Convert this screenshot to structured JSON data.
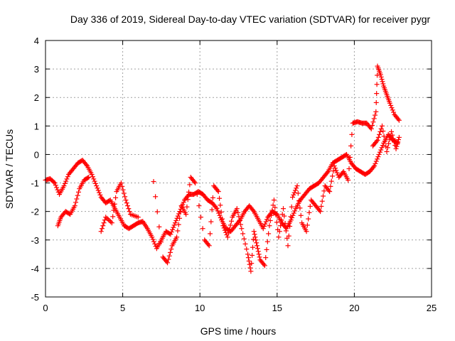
{
  "chart_data": {
    "type": "scatter",
    "title": "Day 336 of 2019, Sidereal Day-to-day VTEC variation (SDTVAR) for receiver pygr",
    "xlabel": "GPS time / hours",
    "ylabel": "SDTVAR / TECUs",
    "xlim": [
      0,
      25
    ],
    "ylim": [
      -5,
      4
    ],
    "xticks": [
      0,
      5,
      10,
      15,
      20,
      25
    ],
    "yticks": [
      -5,
      -4,
      -3,
      -2,
      -1,
      0,
      1,
      2,
      3,
      4
    ],
    "xtick_labels": [
      "0",
      "5",
      "10",
      "15",
      "20",
      "25"
    ],
    "ytick_labels": [
      "-5",
      "-4",
      "-3",
      "-2",
      "-1",
      "0",
      "1",
      "2",
      "3",
      "4"
    ],
    "grid": true,
    "marker": "+",
    "series": [
      {
        "name": "SDTVAR",
        "color": "#ff0000",
        "trace_points": [
          [
            0.0,
            -0.9
          ],
          [
            0.3,
            -0.85
          ],
          [
            0.6,
            -1.0
          ],
          [
            0.9,
            -1.4
          ],
          [
            1.2,
            -1.1
          ],
          [
            1.5,
            -0.7
          ],
          [
            1.8,
            -0.5
          ],
          [
            2.1,
            -0.3
          ],
          [
            2.4,
            -0.2
          ],
          [
            2.7,
            -0.4
          ],
          [
            3.0,
            -0.7
          ],
          [
            3.3,
            -1.1
          ],
          [
            3.6,
            -1.5
          ],
          [
            3.9,
            -1.7
          ],
          [
            4.2,
            -1.6
          ],
          [
            4.5,
            -1.9
          ],
          [
            4.8,
            -2.2
          ],
          [
            5.1,
            -2.5
          ],
          [
            5.4,
            -2.6
          ],
          [
            5.7,
            -2.5
          ],
          [
            6.0,
            -2.4
          ],
          [
            6.3,
            -2.35
          ],
          [
            6.6,
            -2.6
          ],
          [
            6.9,
            -2.9
          ],
          [
            7.2,
            -3.3
          ],
          [
            7.5,
            -3.0
          ],
          [
            7.8,
            -2.7
          ],
          [
            8.1,
            -2.8
          ],
          [
            8.4,
            -2.4
          ],
          [
            8.7,
            -2.0
          ],
          [
            9.0,
            -1.6
          ],
          [
            9.3,
            -1.4
          ],
          [
            9.6,
            -1.4
          ],
          [
            9.9,
            -1.3
          ],
          [
            10.2,
            -1.4
          ],
          [
            10.5,
            -1.6
          ],
          [
            10.8,
            -1.7
          ],
          [
            11.1,
            -1.9
          ],
          [
            11.4,
            -2.3
          ],
          [
            11.7,
            -2.6
          ],
          [
            12.0,
            -2.7
          ],
          [
            12.3,
            -2.5
          ],
          [
            12.6,
            -2.3
          ],
          [
            12.9,
            -2.0
          ],
          [
            13.2,
            -1.8
          ],
          [
            13.5,
            -2.0
          ],
          [
            13.8,
            -2.3
          ],
          [
            14.1,
            -2.6
          ],
          [
            14.4,
            -2.2
          ],
          [
            14.7,
            -2.0
          ],
          [
            15.0,
            -2.1
          ],
          [
            15.3,
            -2.4
          ],
          [
            15.6,
            -2.6
          ],
          [
            15.9,
            -2.3
          ],
          [
            16.2,
            -1.9
          ],
          [
            16.5,
            -1.6
          ],
          [
            16.8,
            -1.4
          ],
          [
            17.1,
            -1.2
          ],
          [
            17.4,
            -1.1
          ],
          [
            17.7,
            -1.0
          ],
          [
            18.0,
            -0.8
          ],
          [
            18.3,
            -0.6
          ],
          [
            18.6,
            -0.3
          ],
          [
            18.9,
            -0.2
          ],
          [
            19.2,
            -0.1
          ],
          [
            19.5,
            0.0
          ],
          [
            19.8,
            -0.3
          ],
          [
            20.1,
            -0.5
          ],
          [
            20.4,
            -0.6
          ],
          [
            20.7,
            -0.7
          ],
          [
            21.0,
            -0.6
          ],
          [
            21.3,
            -0.4
          ],
          [
            21.6,
            0.0
          ],
          [
            21.9,
            0.4
          ],
          [
            22.2,
            0.7
          ],
          [
            22.5,
            0.5
          ],
          [
            22.8,
            0.4
          ],
          [
            0.8,
            -2.5
          ],
          [
            1.0,
            -2.2
          ],
          [
            1.3,
            -2.0
          ],
          [
            1.6,
            -2.1
          ],
          [
            1.9,
            -1.8
          ],
          [
            2.2,
            -1.2
          ],
          [
            2.5,
            -0.9
          ],
          [
            2.8,
            -0.8
          ],
          [
            3.6,
            -2.7
          ],
          [
            3.9,
            -2.2
          ],
          [
            4.3,
            -2.4
          ],
          [
            4.6,
            -1.3
          ],
          [
            4.9,
            -1.0
          ],
          [
            5.2,
            -1.6
          ],
          [
            5.5,
            -2.1
          ],
          [
            6.0,
            -2.2
          ],
          [
            7.0,
            -0.95
          ],
          [
            7.6,
            -3.6
          ],
          [
            7.9,
            -3.8
          ],
          [
            8.2,
            -3.2
          ],
          [
            8.5,
            -2.9
          ],
          [
            8.8,
            -1.8
          ],
          [
            9.1,
            -2.1
          ],
          [
            9.4,
            -0.8
          ],
          [
            9.7,
            -1.0
          ],
          [
            10.3,
            -3.0
          ],
          [
            10.6,
            -3.2
          ],
          [
            10.9,
            -1.1
          ],
          [
            11.2,
            -1.3
          ],
          [
            11.5,
            -2.5
          ],
          [
            11.8,
            -2.9
          ],
          [
            12.1,
            -2.2
          ],
          [
            12.4,
            -1.9
          ],
          [
            12.7,
            -2.6
          ],
          [
            13.1,
            -3.5
          ],
          [
            13.3,
            -4.1
          ],
          [
            13.5,
            -2.7
          ],
          [
            13.7,
            -3.2
          ],
          [
            13.9,
            -3.7
          ],
          [
            14.2,
            -3.9
          ],
          [
            14.5,
            -2.5
          ],
          [
            14.8,
            -1.6
          ],
          [
            15.1,
            -2.9
          ],
          [
            15.4,
            -1.9
          ],
          [
            15.7,
            -3.2
          ],
          [
            16.0,
            -1.5
          ],
          [
            16.3,
            -1.1
          ],
          [
            16.6,
            -2.4
          ],
          [
            16.9,
            -2.7
          ],
          [
            17.2,
            -1.6
          ],
          [
            17.5,
            -1.8
          ],
          [
            17.8,
            -2.0
          ],
          [
            18.1,
            -1.1
          ],
          [
            18.4,
            -1.3
          ],
          [
            18.7,
            -0.4
          ],
          [
            19.0,
            -0.8
          ],
          [
            19.3,
            -0.6
          ],
          [
            19.6,
            -0.9
          ],
          [
            19.9,
            1.1
          ],
          [
            20.2,
            1.15
          ],
          [
            20.5,
            1.1
          ],
          [
            20.8,
            1.1
          ],
          [
            21.1,
            0.9
          ],
          [
            21.4,
            1.5
          ],
          [
            21.5,
            3.1
          ],
          [
            21.7,
            2.8
          ],
          [
            21.9,
            2.4
          ],
          [
            22.1,
            2.1
          ],
          [
            22.3,
            1.8
          ],
          [
            22.6,
            1.4
          ],
          [
            22.9,
            1.2
          ],
          [
            21.2,
            0.3
          ],
          [
            21.5,
            0.5
          ],
          [
            21.8,
            1.0
          ],
          [
            22.1,
            0.1
          ],
          [
            22.4,
            0.8
          ],
          [
            22.7,
            0.2
          ],
          [
            22.9,
            0.6
          ]
        ]
      }
    ]
  }
}
